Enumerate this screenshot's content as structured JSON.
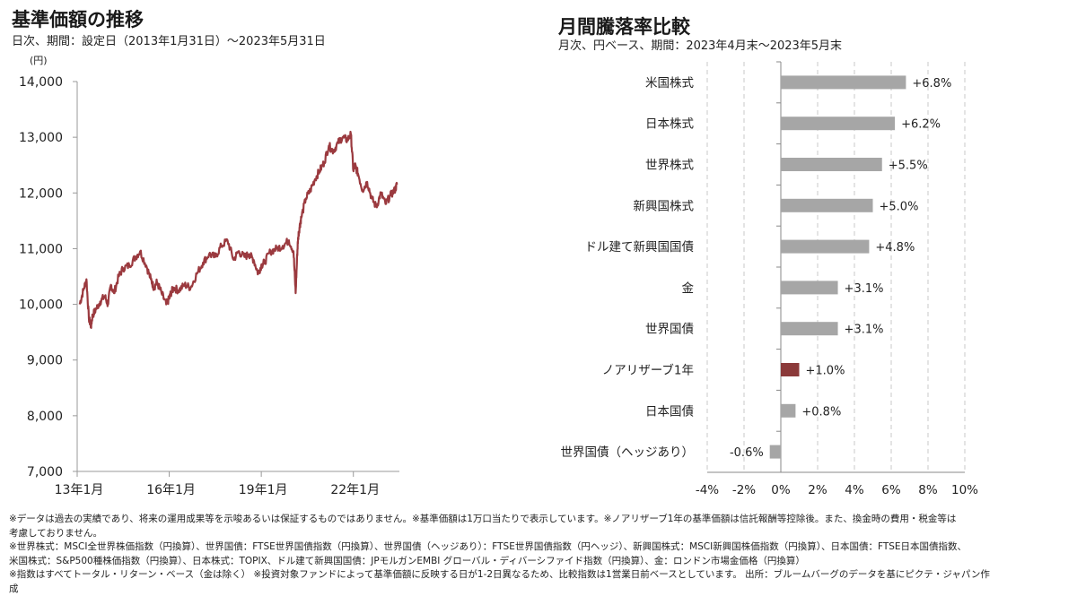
{
  "left_title": "基準価額の推移",
  "left_subtitle": "日次、期間：設定日（2013年1月31日）～2023年5月31日",
  "right_title": "月間騰落率比較",
  "right_subtitle": "月次、円ベース、期間：2023年4月末～2023年5月末",
  "colors": {
    "nav_line": "#9b3a3f",
    "bar_gray": "#a6a6a6",
    "bar_highlight": "#8b3a3a",
    "axis": "#999999"
  },
  "chart_data": [
    {
      "type": "line",
      "title": "基準価額の推移",
      "ylabel": "(円)",
      "ylim": [
        7000,
        14000
      ],
      "yticks": [
        7000,
        8000,
        9000,
        10000,
        11000,
        12000,
        13000,
        14000
      ],
      "ytick_labels": [
        "7,000",
        "8,000",
        "9,000",
        "10,000",
        "11,000",
        "12,000",
        "13,000",
        "14,000"
      ],
      "xlim": [
        2013.0,
        2023.5
      ],
      "xtick_positions": [
        2013.0,
        2016.0,
        2019.0,
        2022.0
      ],
      "xtick_labels": [
        "13年1月",
        "16年1月",
        "19年1月",
        "22年1月"
      ],
      "series": [
        {
          "x": [
            2013.08,
            2013.2,
            2013.3,
            2013.38,
            2013.45,
            2013.5,
            2013.6,
            2013.75,
            2013.9,
            2014.0,
            2014.1,
            2014.2,
            2014.35,
            2014.5,
            2014.7,
            2014.9,
            2015.05,
            2015.25,
            2015.4,
            2015.5,
            2015.6,
            2015.75,
            2015.9,
            2016.0,
            2016.05,
            2016.15,
            2016.3,
            2016.5,
            2016.7,
            2016.9,
            2017.1,
            2017.3,
            2017.5,
            2017.7,
            2017.9,
            2018.1,
            2018.25,
            2018.45,
            2018.6,
            2018.75,
            2018.9,
            2019.0,
            2019.1,
            2019.3,
            2019.5,
            2019.7,
            2019.9,
            2020.05,
            2020.12,
            2020.17,
            2020.2,
            2020.25,
            2020.3,
            2020.45,
            2020.6,
            2020.75,
            2020.9,
            2021.05,
            2021.2,
            2021.35,
            2021.5,
            2021.65,
            2021.8,
            2021.92,
            2022.0,
            2022.05,
            2022.15,
            2022.3,
            2022.45,
            2022.6,
            2022.75,
            2022.9,
            2023.05,
            2023.2,
            2023.35,
            2023.42
          ],
          "y": [
            10000,
            10250,
            10450,
            9750,
            9600,
            9800,
            9900,
            10050,
            10150,
            10000,
            10350,
            10200,
            10500,
            10650,
            10700,
            10850,
            10950,
            10700,
            10450,
            10300,
            10400,
            10200,
            10000,
            10100,
            10200,
            10300,
            10250,
            10350,
            10300,
            10550,
            10750,
            10900,
            10850,
            11050,
            11150,
            10800,
            10950,
            10850,
            10900,
            10800,
            10550,
            10700,
            10750,
            10950,
            11000,
            11050,
            11150,
            10950,
            10200,
            10900,
            11200,
            11400,
            11550,
            11900,
            12050,
            12250,
            12400,
            12550,
            12850,
            12750,
            12900,
            13000,
            12950,
            13050,
            12400,
            12500,
            12350,
            12050,
            12200,
            11900,
            11750,
            12000,
            11800,
            11950,
            12050,
            12150
          ]
        }
      ]
    },
    {
      "type": "bar",
      "orientation": "horizontal",
      "title": "月間騰落率比較",
      "xlim": [
        -4,
        10
      ],
      "xticks": [
        -4,
        -2,
        0,
        2,
        4,
        6,
        8,
        10
      ],
      "xtick_labels": [
        "-4%",
        "-2%",
        "0%",
        "2%",
        "4%",
        "6%",
        "8%",
        "10%"
      ],
      "categories": [
        "米国株式",
        "日本株式",
        "世界株式",
        "新興国株式",
        "ドル建て新興国国債",
        "金",
        "世界国債",
        "ノアリザーブ1年",
        "日本国債",
        "世界国債（ヘッジあり）"
      ],
      "values": [
        6.8,
        6.2,
        5.5,
        5.0,
        4.8,
        3.1,
        3.1,
        1.0,
        0.8,
        -0.6
      ],
      "labels": [
        "+6.8%",
        "+6.2%",
        "+5.5%",
        "+5.0%",
        "+4.8%",
        "+3.1%",
        "+3.1%",
        "+1.0%",
        "+0.8%",
        "-0.6%"
      ],
      "highlight": "ノアリザーブ1年"
    }
  ],
  "notes": [
    "※データは過去の実績であり、将来の運用成果等を示唆あるいは保証するものではありません。※基準価額は1万口当たりで表示しています。※ノアリザーブ1年の基準価額は信託報酬等控除後。また、換金時の費用・税金等は",
    "考慮しておりません。",
    "※世界株式：MSCI全世界株価指数（円換算）、世界国債：FTSE世界国債指数（円換算）、世界国債（ヘッジあり）：FTSE世界国債指数（円ヘッジ）、新興国株式：MSCI新興国株価指数（円換算）、日本国債：FTSE日本国債指数、",
    "米国株式：S&P500種株価指数（円換算）、日本株式：TOPIX、ドル建て新興国国債：JPモルガンEMBI グローバル・ディバーシファイド指数（円換算）、金：ロンドン市場金価格（円換算）",
    "※指数はすべてトータル・リターン・ベース（金は除く） ※投資対象ファンドによって基準価額に反映する日が1-2日異なるため、比較指数は1営業日前ベースとしています。 出所：ブルームバーグのデータを基にピクテ・ジャパン作",
    "成"
  ]
}
